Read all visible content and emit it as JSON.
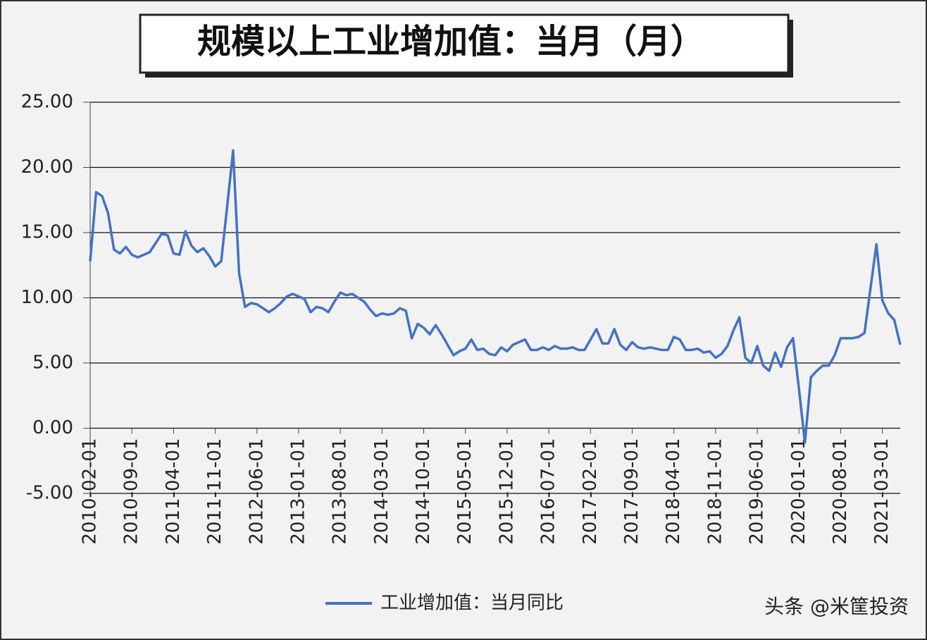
{
  "chart_data": {
    "type": "line",
    "title": "规模以上工业增加值：当月（月）",
    "categories": [
      "2010-02-01",
      null,
      null,
      null,
      null,
      null,
      null,
      "2010-09-01",
      null,
      null,
      null,
      null,
      null,
      null,
      "2011-04-01",
      null,
      null,
      null,
      null,
      null,
      null,
      "2011-11-01",
      null,
      null,
      null,
      null,
      null,
      null,
      "2012-06-01",
      null,
      null,
      null,
      null,
      null,
      null,
      "2013-01-01",
      null,
      null,
      null,
      null,
      null,
      null,
      "2013-08-01",
      null,
      null,
      null,
      null,
      null,
      null,
      "2014-03-01",
      null,
      null,
      null,
      null,
      null,
      null,
      "2014-10-01",
      null,
      null,
      null,
      null,
      null,
      null,
      "2015-05-01",
      null,
      null,
      null,
      null,
      null,
      null,
      "2015-12-01",
      null,
      null,
      null,
      null,
      null,
      null,
      "2016-07-01",
      null,
      null,
      null,
      null,
      null,
      null,
      "2017-02-01",
      null,
      null,
      null,
      null,
      null,
      null,
      "2017-09-01",
      null,
      null,
      null,
      null,
      null,
      null,
      "2018-04-01",
      null,
      null,
      null,
      null,
      null,
      null,
      "2018-11-01",
      null,
      null,
      null,
      null,
      null,
      null,
      "2019-06-01",
      null,
      null,
      null,
      null,
      null,
      null,
      "2020-01-01",
      null,
      null,
      null,
      null,
      null,
      null,
      "2020-08-01",
      null,
      null,
      null,
      null,
      null,
      null,
      "2021-03-01",
      null,
      null,
      null
    ],
    "series": [
      {
        "name": "工业增加值：当月同比",
        "color": "#4472c4",
        "values": [
          12.8,
          18.1,
          17.8,
          16.5,
          13.7,
          13.4,
          13.9,
          13.3,
          13.1,
          13.3,
          13.5,
          14.2,
          14.9,
          14.8,
          13.4,
          13.3,
          15.1,
          14.0,
          13.5,
          13.8,
          13.2,
          12.4,
          12.8,
          17.0,
          21.3,
          11.9,
          9.3,
          9.6,
          9.5,
          9.2,
          8.9,
          9.2,
          9.6,
          10.1,
          10.3,
          10.1,
          9.9,
          8.9,
          9.3,
          9.2,
          8.9,
          9.7,
          10.4,
          10.2,
          10.3,
          10.0,
          9.7,
          9.1,
          8.6,
          8.8,
          8.7,
          8.8,
          9.2,
          9.0,
          6.9,
          8.0,
          7.7,
          7.2,
          7.9,
          7.2,
          6.4,
          5.6,
          5.9,
          6.1,
          6.8,
          6.0,
          6.1,
          5.7,
          5.6,
          6.2,
          5.9,
          6.4,
          6.6,
          6.8,
          6.0,
          6.0,
          6.2,
          6.0,
          6.3,
          6.1,
          6.1,
          6.2,
          6.0,
          6.0,
          6.8,
          7.6,
          6.5,
          6.5,
          7.6,
          6.4,
          6.0,
          6.6,
          6.2,
          6.1,
          6.2,
          6.1,
          6.0,
          6.0,
          7.0,
          6.8,
          6.0,
          6.0,
          6.1,
          5.8,
          5.9,
          5.4,
          5.7,
          6.3,
          7.5,
          8.5,
          5.4,
          5.0,
          6.3,
          4.8,
          4.4,
          5.8,
          4.7,
          6.2,
          6.9,
          3.0,
          -1.1,
          3.9,
          4.4,
          4.8,
          4.8,
          5.6,
          6.9,
          6.9,
          6.9,
          7.0,
          7.3,
          10.7,
          14.1,
          9.8,
          8.8,
          8.3,
          6.4
        ]
      }
    ],
    "ylim": [
      -5,
      25
    ],
    "yticks": [
      {
        "value": -5,
        "label": "-5.00"
      },
      {
        "value": 0,
        "label": "0.00"
      },
      {
        "value": 5,
        "label": "5.00"
      },
      {
        "value": 10,
        "label": "10.00"
      },
      {
        "value": 15,
        "label": "15.00"
      },
      {
        "value": 20,
        "label": "20.00"
      },
      {
        "value": 25,
        "label": "25.00"
      }
    ],
    "grid": true,
    "watermark": "头条 @米筐投资"
  }
}
